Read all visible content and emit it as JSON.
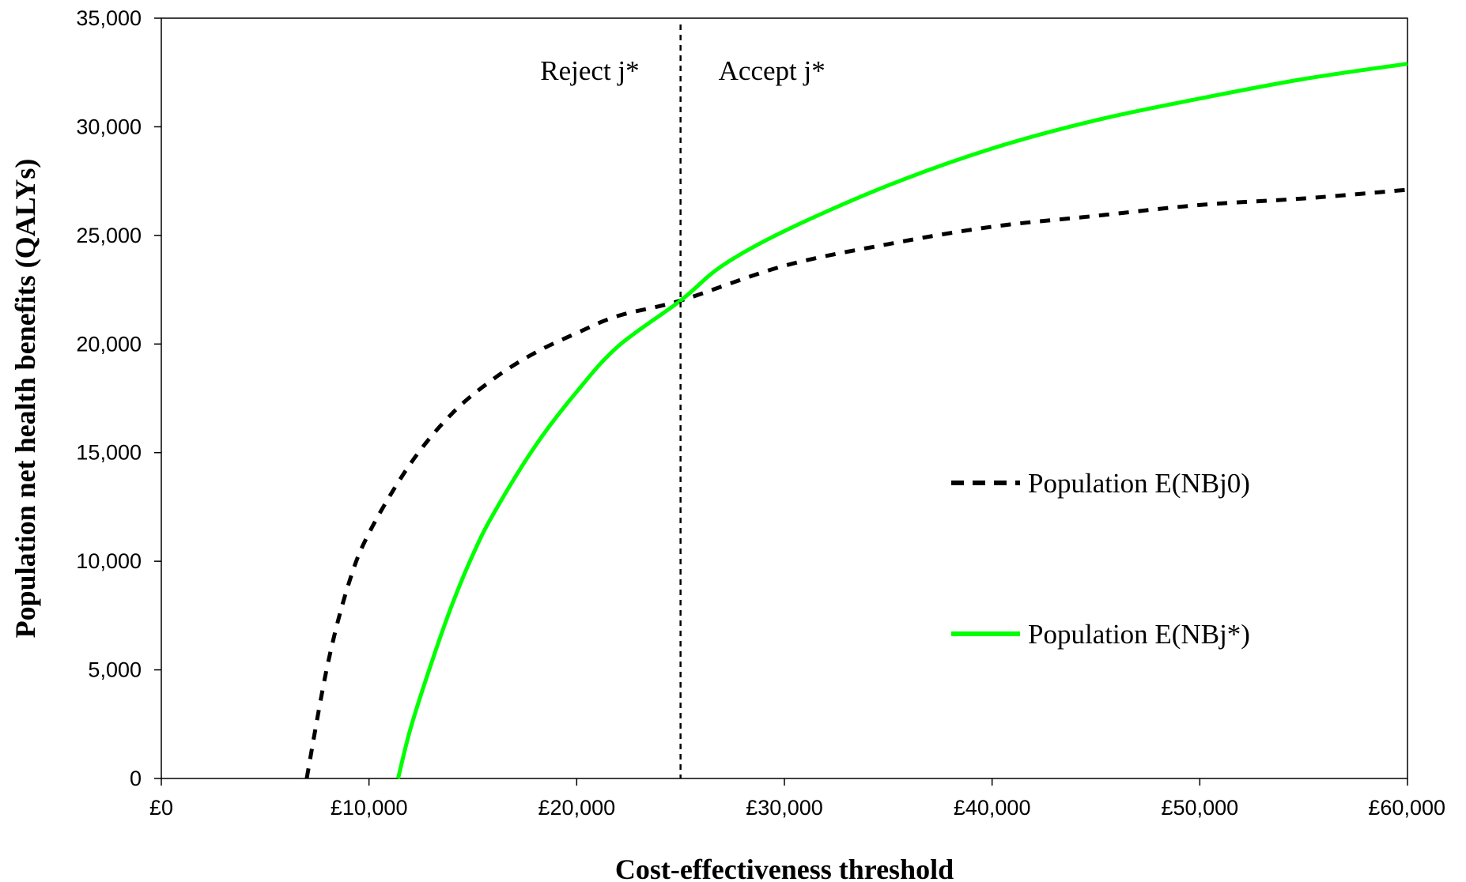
{
  "chart_data": {
    "type": "line",
    "title": "",
    "xlabel": "Cost-effectiveness threshold",
    "ylabel": "Population net health benefits (QALYs)",
    "xlim": [
      0,
      60000
    ],
    "ylim": [
      0,
      35000
    ],
    "x_ticks": [
      0,
      10000,
      20000,
      30000,
      40000,
      50000,
      60000
    ],
    "x_tick_labels": [
      "£0",
      "£10,000",
      "£20,000",
      "£30,000",
      "£40,000",
      "£50,000",
      "£60,000"
    ],
    "y_ticks": [
      0,
      5000,
      10000,
      15000,
      20000,
      25000,
      30000,
      35000
    ],
    "y_tick_labels": [
      "0",
      "5,000",
      "10,000",
      "15,000",
      "20,000",
      "25,000",
      "30,000",
      "35,000"
    ],
    "grid": false,
    "legend_position": "right",
    "series": [
      {
        "name": "Population E(NBj0)",
        "style": "dashed",
        "color": "#000000",
        "x": [
          7000,
          8000,
          9000,
          10000,
          12000,
          14000,
          16000,
          18000,
          20000,
          22000,
          25000,
          30000,
          35000,
          40000,
          45000,
          50000,
          55000,
          60000
        ],
        "y": [
          0,
          5200,
          8900,
          11300,
          14500,
          16800,
          18400,
          19600,
          20500,
          21300,
          22000,
          23600,
          24600,
          25400,
          25900,
          26400,
          26700,
          27100
        ]
      },
      {
        "name": "Population E(NBj*)",
        "style": "solid",
        "color": "#00ff00",
        "x": [
          11400,
          12000,
          13000,
          14000,
          15000,
          16000,
          18000,
          20000,
          22000,
          25000,
          27000,
          30000,
          35000,
          40000,
          45000,
          50000,
          55000,
          60000
        ],
        "y": [
          0,
          2300,
          5300,
          8000,
          10300,
          12200,
          15300,
          17800,
          19900,
          22000,
          23600,
          25200,
          27300,
          29000,
          30300,
          31300,
          32200,
          32900
        ]
      }
    ],
    "vline": {
      "x": 25000,
      "style": "dashed",
      "color": "#000000"
    },
    "annotations": [
      {
        "text": "Reject j*",
        "side": "left-of-vline"
      },
      {
        "text": "Accept j*",
        "side": "right-of-vline"
      }
    ]
  }
}
